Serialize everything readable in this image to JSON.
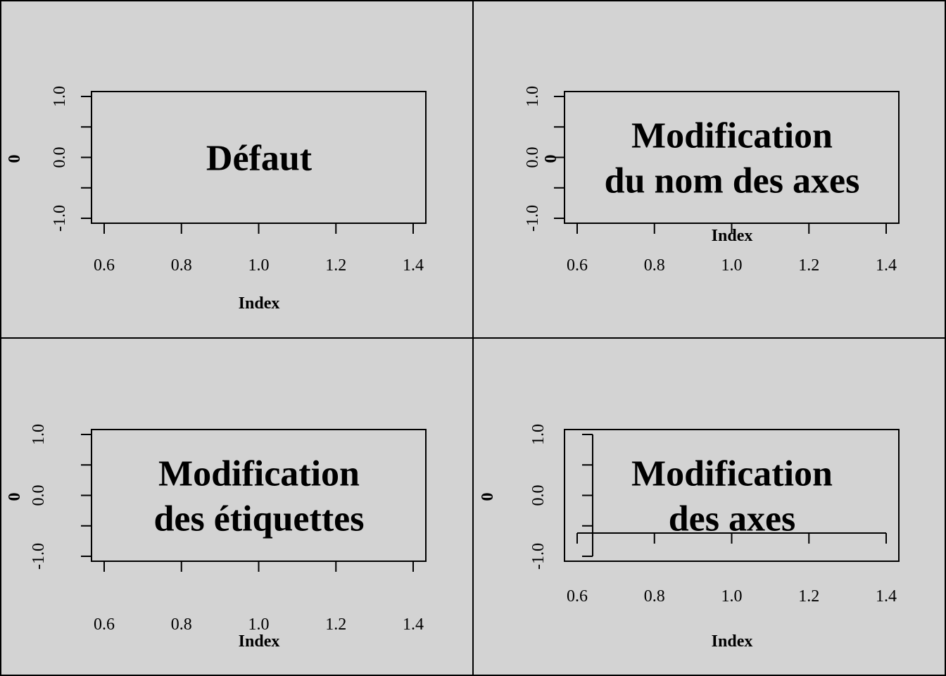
{
  "chart_data": [
    {
      "type": "scatter",
      "text": [
        "Défaut"
      ],
      "xlabel": "Index",
      "ylabel": "0",
      "xticks": [
        "0.6",
        "0.8",
        "1.0",
        "1.2",
        "1.4"
      ],
      "yticks": [
        "-1.0",
        "0.0",
        "1.0"
      ],
      "xlim": [
        0.6,
        1.4
      ],
      "ylim": [
        -1,
        1
      ]
    },
    {
      "type": "scatter",
      "text": [
        "Modification",
        "du nom des axes"
      ],
      "xlabel": "Index",
      "ylabel": "0",
      "xticks": [
        "0.6",
        "0.8",
        "1.0",
        "1.2",
        "1.4"
      ],
      "yticks": [
        "-1.0",
        "0.0",
        "1.0"
      ],
      "xlim": [
        0.6,
        1.4
      ],
      "ylim": [
        -1,
        1
      ]
    },
    {
      "type": "scatter",
      "text": [
        "Modification",
        "des étiquettes"
      ],
      "xlabel": "Index",
      "ylabel": "0",
      "xticks": [
        "0.6",
        "0.8",
        "1.0",
        "1.2",
        "1.4"
      ],
      "yticks": [
        "-1.0",
        "0.0",
        "1.0"
      ],
      "xlim": [
        0.6,
        1.4
      ],
      "ylim": [
        -1,
        1
      ]
    },
    {
      "type": "scatter",
      "text": [
        "Modification",
        "des axes"
      ],
      "xlabel": "Index",
      "ylabel": "0",
      "xticks": [
        "0.6",
        "0.8",
        "1.0",
        "1.2",
        "1.4"
      ],
      "yticks": [
        "-1.0",
        "0.0",
        "1.0"
      ],
      "xlim": [
        0.6,
        1.4
      ],
      "ylim": [
        -1,
        1
      ]
    }
  ]
}
